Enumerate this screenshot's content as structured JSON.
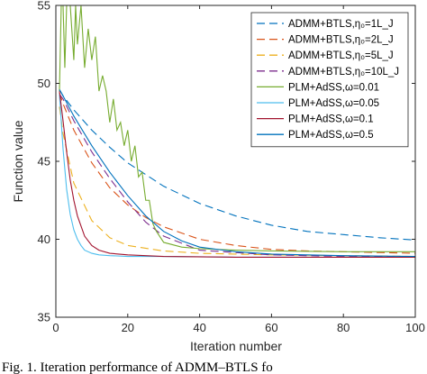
{
  "chart_data": {
    "type": "line",
    "xlabel": "Iteration number",
    "ylabel": "Function value",
    "xlim": [
      0,
      100
    ],
    "ylim": [
      35,
      55
    ],
    "xticks": [
      0,
      20,
      40,
      60,
      80,
      100
    ],
    "yticks": [
      35,
      40,
      45,
      50,
      55
    ],
    "grid": false,
    "legend_position": "top-right",
    "series": [
      {
        "name": "ADMM+BTLS,η₀=1L_J",
        "color": "#0072BD",
        "dash": "dashed",
        "x": [
          1,
          2,
          5,
          10,
          15,
          20,
          30,
          40,
          50,
          60,
          70,
          80,
          90,
          100
        ],
        "y": [
          49.6,
          49.2,
          48.3,
          47.0,
          45.9,
          44.9,
          43.4,
          42.3,
          41.5,
          40.9,
          40.5,
          40.3,
          40.1,
          39.95
        ]
      },
      {
        "name": "ADMM+BTLS,η₀=2L_J",
        "color": "#D95319",
        "dash": "dashed",
        "x": [
          1,
          2,
          5,
          10,
          15,
          20,
          25,
          30,
          40,
          50,
          60,
          70,
          80,
          90,
          100
        ],
        "y": [
          49.4,
          48.7,
          47.0,
          44.9,
          43.3,
          42.2,
          41.4,
          40.8,
          40.0,
          39.6,
          39.35,
          39.25,
          39.2,
          39.15,
          39.1
        ]
      },
      {
        "name": "ADMM+BTLS,η₀=5L_J",
        "color": "#EDB120",
        "dash": "dashed",
        "x": [
          1,
          2,
          5,
          10,
          15,
          20,
          30,
          40,
          60,
          80,
          100
        ],
        "y": [
          48.5,
          46.8,
          43.6,
          41.2,
          40.1,
          39.6,
          39.25,
          39.1,
          39.0,
          38.95,
          38.9
        ]
      },
      {
        "name": "ADMM+BTLS,η₀=10L_J",
        "color": "#7E2F8E",
        "dash": "dashed",
        "x": [
          1,
          2,
          5,
          10,
          15,
          20,
          25,
          30,
          40,
          60,
          80,
          100
        ],
        "y": [
          49.3,
          49.0,
          47.6,
          45.6,
          43.9,
          42.4,
          41.1,
          40.2,
          39.3,
          39.0,
          38.9,
          38.85
        ]
      },
      {
        "name": "PLM+AdSS,ω=0.01",
        "color": "#77AC30",
        "dash": "solid",
        "x": [
          1,
          1.5,
          2,
          2.5,
          3,
          3.5,
          4,
          5,
          5.5,
          6,
          7,
          8,
          9,
          10,
          11,
          12,
          13,
          14,
          15,
          16,
          17,
          18,
          19,
          20,
          21,
          22,
          23,
          24,
          25,
          26,
          27,
          28,
          30,
          35,
          40,
          50,
          60,
          80,
          100
        ],
        "y": [
          49.5,
          55,
          55,
          51,
          55,
          55,
          55,
          51.5,
          55,
          52.5,
          55,
          51,
          53.5,
          51.5,
          53,
          49.5,
          50.5,
          49.5,
          47.5,
          49,
          47,
          47.5,
          46,
          47,
          45,
          46,
          44,
          44.3,
          42.5,
          42.5,
          41,
          40.5,
          39.8,
          39.5,
          39.4,
          39.3,
          39.25,
          39.2,
          39.2
        ]
      },
      {
        "name": "PLM+AdSS,ω=0.05",
        "color": "#4DBEEE",
        "dash": "solid",
        "x": [
          1,
          2,
          3,
          4,
          5,
          6,
          7,
          8,
          10,
          12,
          15,
          20,
          30,
          50,
          100
        ],
        "y": [
          49.3,
          45.8,
          43.2,
          41.6,
          40.6,
          40.0,
          39.6,
          39.3,
          39.1,
          39.0,
          38.95,
          38.9,
          38.9,
          38.85,
          38.85
        ]
      },
      {
        "name": "PLM+AdSS,ω=0.1",
        "color": "#A2142F",
        "dash": "solid",
        "x": [
          1,
          2,
          3,
          4,
          5,
          6,
          8,
          10,
          12,
          15,
          20,
          30,
          50,
          100
        ],
        "y": [
          49.5,
          47.6,
          45.6,
          43.8,
          42.5,
          41.5,
          40.2,
          39.6,
          39.3,
          39.1,
          39.0,
          38.9,
          38.85,
          38.85
        ]
      },
      {
        "name": "PLM+AdSS,ω=0.5",
        "color": "#0072BD",
        "dash": "solid",
        "x": [
          1,
          2,
          5,
          10,
          15,
          20,
          25,
          30,
          35,
          40,
          50,
          60,
          70,
          80,
          100
        ],
        "y": [
          49.6,
          49.2,
          47.9,
          46.0,
          44.3,
          42.8,
          41.5,
          40.5,
          39.9,
          39.5,
          39.2,
          39.05,
          39.0,
          38.95,
          38.9
        ]
      }
    ]
  },
  "caption": "Fig. 1.   Iteration performance of ADMM–BTLS fo"
}
